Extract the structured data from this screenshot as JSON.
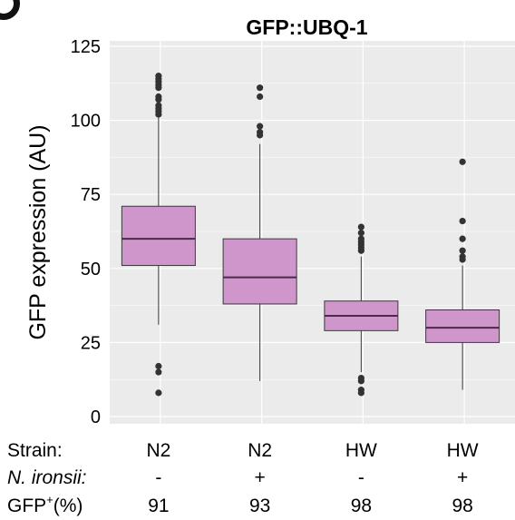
{
  "chart_data": {
    "type": "box",
    "title": "GFP::UBQ-1",
    "ylabel": "GFP expression (AU)",
    "xlabel": "",
    "ylim": [
      0,
      125
    ],
    "yticks": [
      0,
      25,
      50,
      75,
      100,
      125
    ],
    "grid": true,
    "categories": [
      "N2",
      "N2",
      "HW",
      "HW"
    ],
    "table_rows": [
      {
        "label": "Strain:",
        "values": [
          "N2",
          "N2",
          "HW",
          "HW"
        ],
        "italic": false
      },
      {
        "label": "N. ironsii:",
        "values": [
          "-",
          "+",
          "-",
          "+"
        ],
        "italic": true
      },
      {
        "label": "GFP+(%)",
        "label_main": "GFP",
        "label_sup": "+",
        "label_tail": "(%)",
        "values": [
          "91",
          "93",
          "98",
          "98"
        ],
        "italic": false
      }
    ],
    "boxes": [
      {
        "q1": 51,
        "median": 60,
        "q3": 71,
        "whisker_low": 31,
        "whisker_high": 101,
        "outliers": [
          102,
          103,
          104,
          105,
          107,
          108,
          111,
          112,
          113,
          114,
          115,
          17,
          15,
          8
        ]
      },
      {
        "q1": 38,
        "median": 47,
        "q3": 60,
        "whisker_low": 12,
        "whisker_high": 92,
        "outliers": [
          95,
          96,
          98,
          108,
          111
        ]
      },
      {
        "q1": 29,
        "median": 34,
        "q3": 39,
        "whisker_low": 15,
        "whisker_high": 54,
        "outliers": [
          56,
          57,
          58,
          59,
          60,
          62,
          64,
          13,
          12,
          9,
          8
        ]
      },
      {
        "q1": 25,
        "median": 30,
        "q3": 36,
        "whisker_low": 9,
        "whisker_high": 51,
        "outliers": [
          53,
          54,
          56,
          60,
          66,
          86
        ]
      }
    ],
    "box_color": "#cf96cc",
    "box_edge_color": "#3a3a3a",
    "outlier_color": "#333333",
    "panel_bg": "#ebebeb",
    "grid_color": "#ffffff"
  }
}
